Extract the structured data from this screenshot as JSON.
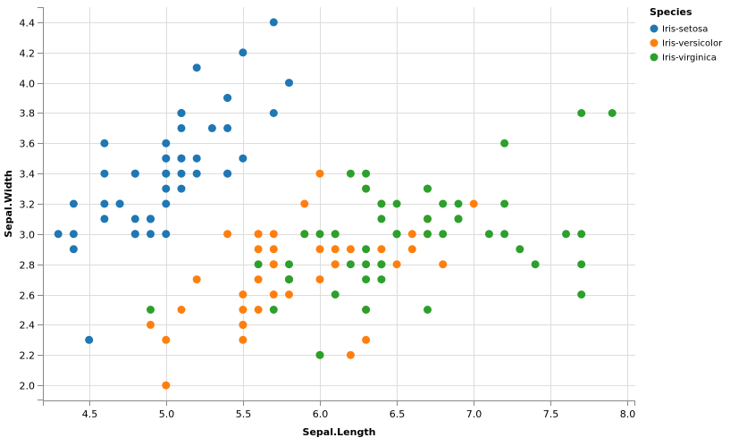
{
  "chart_data": {
    "type": "scatter",
    "xlabel": "Sepal.Length",
    "ylabel": "Sepal.Width",
    "xlim": [
      4.2,
      8.05
    ],
    "ylim": [
      1.9,
      4.5
    ],
    "x_ticks": [
      4.5,
      5.0,
      5.5,
      6.0,
      6.5,
      7.0,
      7.5,
      8.0
    ],
    "y_ticks": [
      2.0,
      2.2,
      2.4,
      2.6,
      2.8,
      3.0,
      3.2,
      3.4,
      3.6,
      3.8,
      4.0,
      4.2,
      4.4
    ],
    "grid": true,
    "legend": {
      "title": "Species",
      "position": "top-right"
    },
    "series": [
      {
        "name": "Iris-setosa",
        "color": "#1f77b4",
        "points": [
          [
            5.1,
            3.5
          ],
          [
            4.9,
            3.0
          ],
          [
            4.7,
            3.2
          ],
          [
            4.6,
            3.1
          ],
          [
            5.0,
            3.6
          ],
          [
            5.4,
            3.9
          ],
          [
            4.6,
            3.4
          ],
          [
            5.0,
            3.4
          ],
          [
            4.4,
            2.9
          ],
          [
            4.9,
            3.1
          ],
          [
            5.4,
            3.7
          ],
          [
            4.8,
            3.4
          ],
          [
            4.8,
            3.0
          ],
          [
            4.3,
            3.0
          ],
          [
            5.8,
            4.0
          ],
          [
            5.7,
            4.4
          ],
          [
            5.4,
            3.9
          ],
          [
            5.1,
            3.5
          ],
          [
            5.7,
            3.8
          ],
          [
            5.1,
            3.8
          ],
          [
            5.4,
            3.4
          ],
          [
            5.1,
            3.7
          ],
          [
            4.6,
            3.6
          ],
          [
            5.1,
            3.3
          ],
          [
            4.8,
            3.4
          ],
          [
            5.0,
            3.0
          ],
          [
            5.0,
            3.4
          ],
          [
            5.2,
            3.5
          ],
          [
            5.2,
            3.4
          ],
          [
            4.7,
            3.2
          ],
          [
            4.8,
            3.1
          ],
          [
            5.4,
            3.4
          ],
          [
            5.2,
            4.1
          ],
          [
            5.5,
            4.2
          ],
          [
            4.9,
            3.1
          ],
          [
            5.0,
            3.2
          ],
          [
            5.5,
            3.5
          ],
          [
            4.9,
            3.1
          ],
          [
            4.4,
            3.0
          ],
          [
            5.1,
            3.4
          ],
          [
            5.0,
            3.5
          ],
          [
            4.5,
            2.3
          ],
          [
            4.4,
            3.2
          ],
          [
            5.0,
            3.5
          ],
          [
            5.1,
            3.8
          ],
          [
            4.8,
            3.0
          ],
          [
            5.1,
            3.8
          ],
          [
            4.6,
            3.2
          ],
          [
            5.3,
            3.7
          ],
          [
            5.0,
            3.3
          ]
        ]
      },
      {
        "name": "Iris-versicolor",
        "color": "#ff7f0e",
        "points": [
          [
            7.0,
            3.2
          ],
          [
            6.4,
            3.2
          ],
          [
            6.9,
            3.1
          ],
          [
            5.5,
            2.3
          ],
          [
            6.5,
            2.8
          ],
          [
            5.7,
            2.8
          ],
          [
            6.3,
            3.3
          ],
          [
            4.9,
            2.4
          ],
          [
            6.6,
            2.9
          ],
          [
            5.2,
            2.7
          ],
          [
            5.0,
            2.0
          ],
          [
            5.9,
            3.0
          ],
          [
            6.0,
            2.2
          ],
          [
            6.1,
            2.9
          ],
          [
            5.6,
            2.9
          ],
          [
            6.7,
            3.1
          ],
          [
            5.6,
            3.0
          ],
          [
            5.8,
            2.7
          ],
          [
            6.2,
            2.2
          ],
          [
            5.6,
            2.5
          ],
          [
            5.9,
            3.2
          ],
          [
            6.1,
            2.8
          ],
          [
            6.3,
            2.5
          ],
          [
            6.1,
            2.8
          ],
          [
            6.4,
            2.9
          ],
          [
            6.6,
            3.0
          ],
          [
            6.8,
            2.8
          ],
          [
            6.7,
            3.0
          ],
          [
            6.0,
            2.9
          ],
          [
            5.7,
            2.6
          ],
          [
            5.5,
            2.4
          ],
          [
            5.5,
            2.4
          ],
          [
            5.8,
            2.7
          ],
          [
            6.0,
            2.7
          ],
          [
            5.4,
            3.0
          ],
          [
            6.0,
            3.4
          ],
          [
            6.7,
            3.1
          ],
          [
            6.3,
            2.3
          ],
          [
            5.6,
            3.0
          ],
          [
            5.5,
            2.5
          ],
          [
            5.5,
            2.6
          ],
          [
            6.1,
            3.0
          ],
          [
            5.8,
            2.6
          ],
          [
            5.0,
            2.3
          ],
          [
            5.6,
            2.7
          ],
          [
            5.7,
            3.0
          ],
          [
            5.7,
            2.9
          ],
          [
            6.2,
            2.9
          ],
          [
            5.1,
            2.5
          ],
          [
            5.7,
            2.8
          ]
        ]
      },
      {
        "name": "Iris-virginica",
        "color": "#2ca02c",
        "points": [
          [
            6.3,
            3.3
          ],
          [
            5.8,
            2.7
          ],
          [
            7.1,
            3.0
          ],
          [
            6.3,
            2.9
          ],
          [
            6.5,
            3.0
          ],
          [
            7.6,
            3.0
          ],
          [
            4.9,
            2.5
          ],
          [
            7.3,
            2.9
          ],
          [
            6.7,
            2.5
          ],
          [
            7.2,
            3.6
          ],
          [
            6.5,
            3.2
          ],
          [
            6.4,
            2.7
          ],
          [
            6.8,
            3.0
          ],
          [
            5.7,
            2.5
          ],
          [
            5.8,
            2.8
          ],
          [
            6.4,
            3.2
          ],
          [
            6.5,
            3.0
          ],
          [
            7.7,
            3.8
          ],
          [
            7.7,
            2.6
          ],
          [
            6.0,
            2.2
          ],
          [
            6.9,
            3.2
          ],
          [
            5.6,
            2.8
          ],
          [
            7.7,
            2.8
          ],
          [
            6.3,
            2.7
          ],
          [
            6.7,
            3.3
          ],
          [
            7.2,
            3.2
          ],
          [
            6.2,
            2.8
          ],
          [
            6.1,
            3.0
          ],
          [
            6.4,
            2.8
          ],
          [
            7.2,
            3.0
          ],
          [
            7.4,
            2.8
          ],
          [
            7.9,
            3.8
          ],
          [
            6.4,
            2.8
          ],
          [
            6.3,
            2.8
          ],
          [
            6.1,
            2.6
          ],
          [
            7.7,
            3.0
          ],
          [
            6.3,
            3.4
          ],
          [
            6.4,
            3.1
          ],
          [
            6.0,
            3.0
          ],
          [
            6.9,
            3.1
          ],
          [
            6.7,
            3.1
          ],
          [
            6.9,
            3.1
          ],
          [
            5.8,
            2.7
          ],
          [
            6.8,
            3.2
          ],
          [
            6.7,
            3.3
          ],
          [
            6.7,
            3.0
          ],
          [
            6.3,
            2.5
          ],
          [
            6.5,
            3.0
          ],
          [
            6.2,
            3.4
          ],
          [
            5.9,
            3.0
          ]
        ]
      }
    ]
  }
}
